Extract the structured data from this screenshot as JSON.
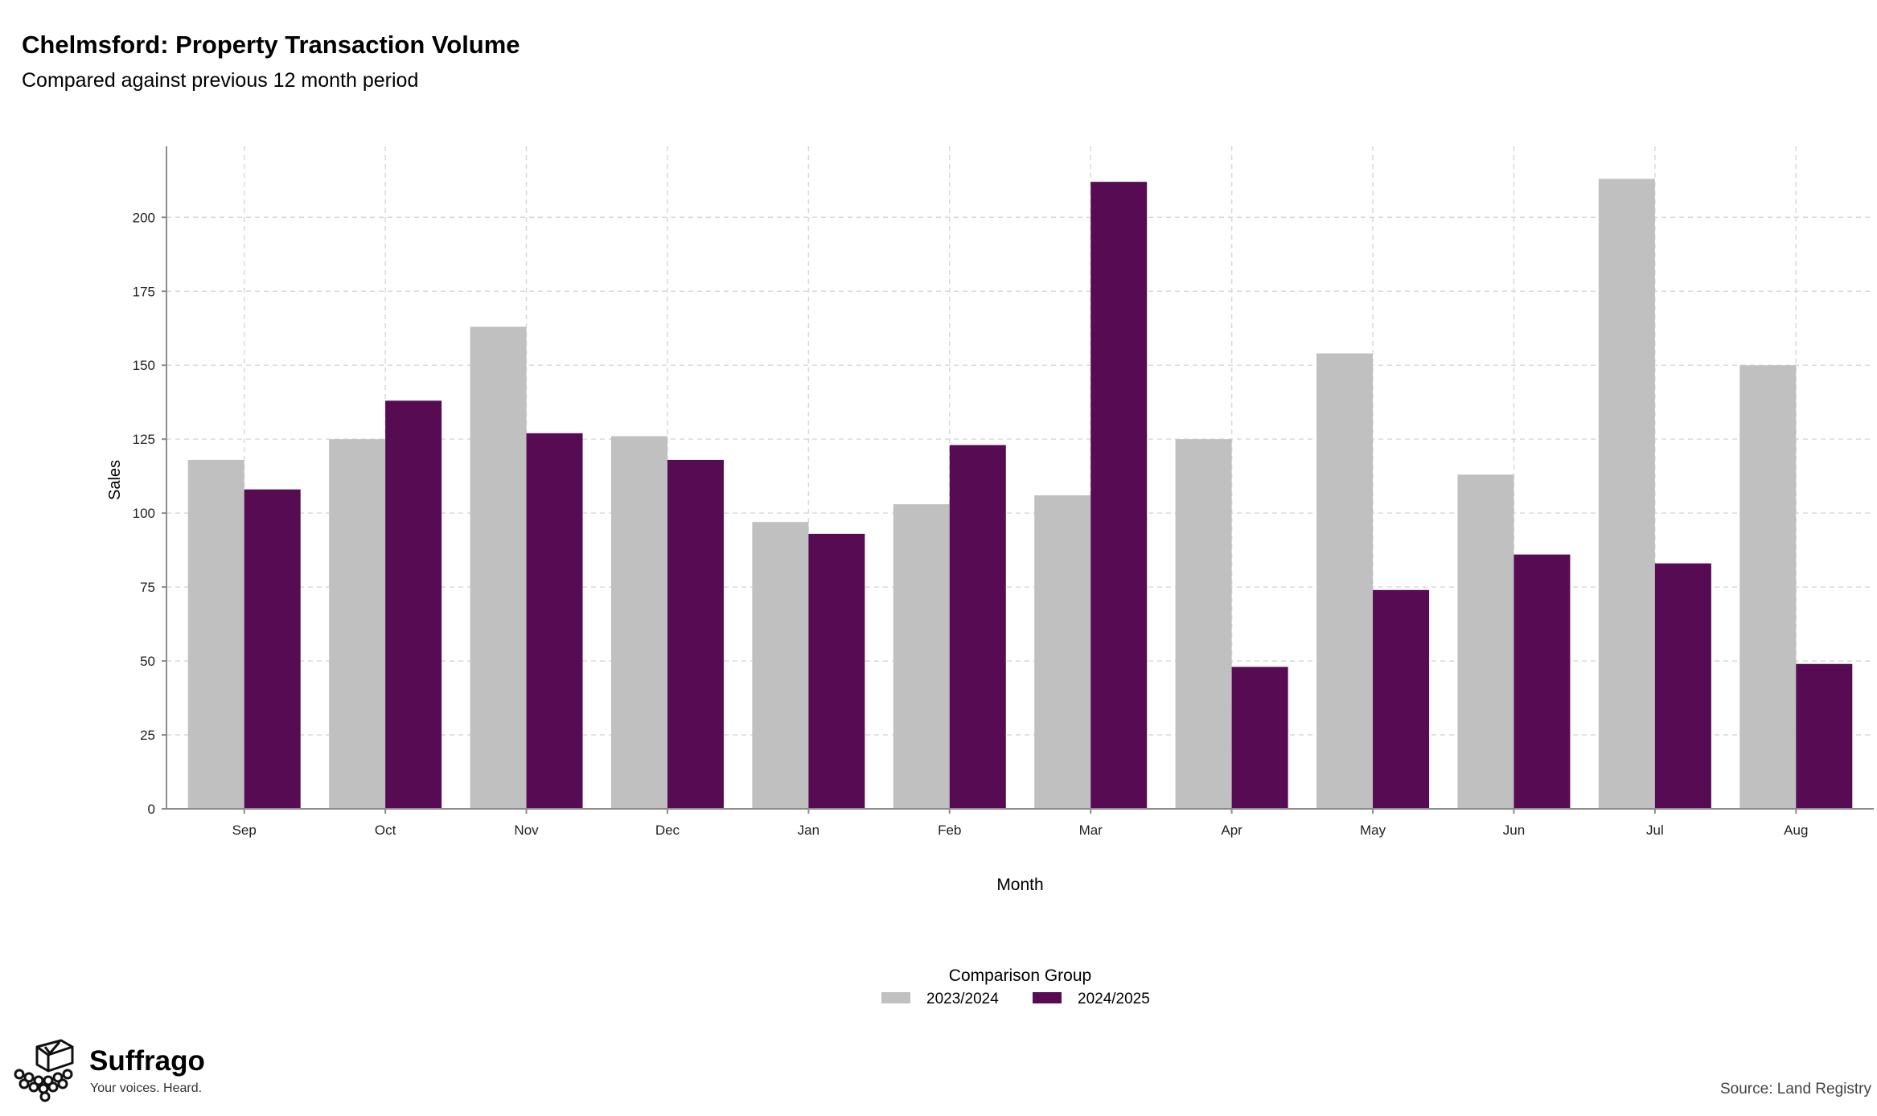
{
  "header": {
    "title": "Chelmsford: Property Transaction Volume",
    "subtitle": "Compared against previous 12 month period"
  },
  "footer": {
    "brand_name": "Suffrago",
    "brand_tagline": "Your voices. Heard.",
    "source": "Source: Land Registry"
  },
  "colors": {
    "series_2023": "#c0c0c0",
    "series_2024": "#560b53",
    "grid": "#d9d9d9",
    "axis": "#8c8c8c"
  },
  "chart_data": {
    "type": "bar",
    "title": "Chelmsford: Property Transaction Volume",
    "subtitle": "Compared against previous 12 month period",
    "xlabel": "Month",
    "ylabel": "Sales",
    "ylim": [
      0,
      224
    ],
    "yticks": [
      0,
      25,
      50,
      75,
      100,
      125,
      150,
      175,
      200
    ],
    "grid": true,
    "legend_title": "Comparison Group",
    "legend_position": "bottom",
    "categories": [
      "Sep",
      "Oct",
      "Nov",
      "Dec",
      "Jan",
      "Feb",
      "Mar",
      "Apr",
      "May",
      "Jun",
      "Jul",
      "Aug"
    ],
    "series": [
      {
        "name": "2023/2024",
        "color": "#c0c0c0",
        "values": [
          118,
          125,
          163,
          126,
          97,
          103,
          106,
          125,
          154,
          113,
          213,
          150
        ]
      },
      {
        "name": "2024/2025",
        "color": "#560b53",
        "values": [
          108,
          138,
          127,
          118,
          93,
          123,
          212,
          48,
          74,
          86,
          83,
          49
        ]
      }
    ]
  }
}
